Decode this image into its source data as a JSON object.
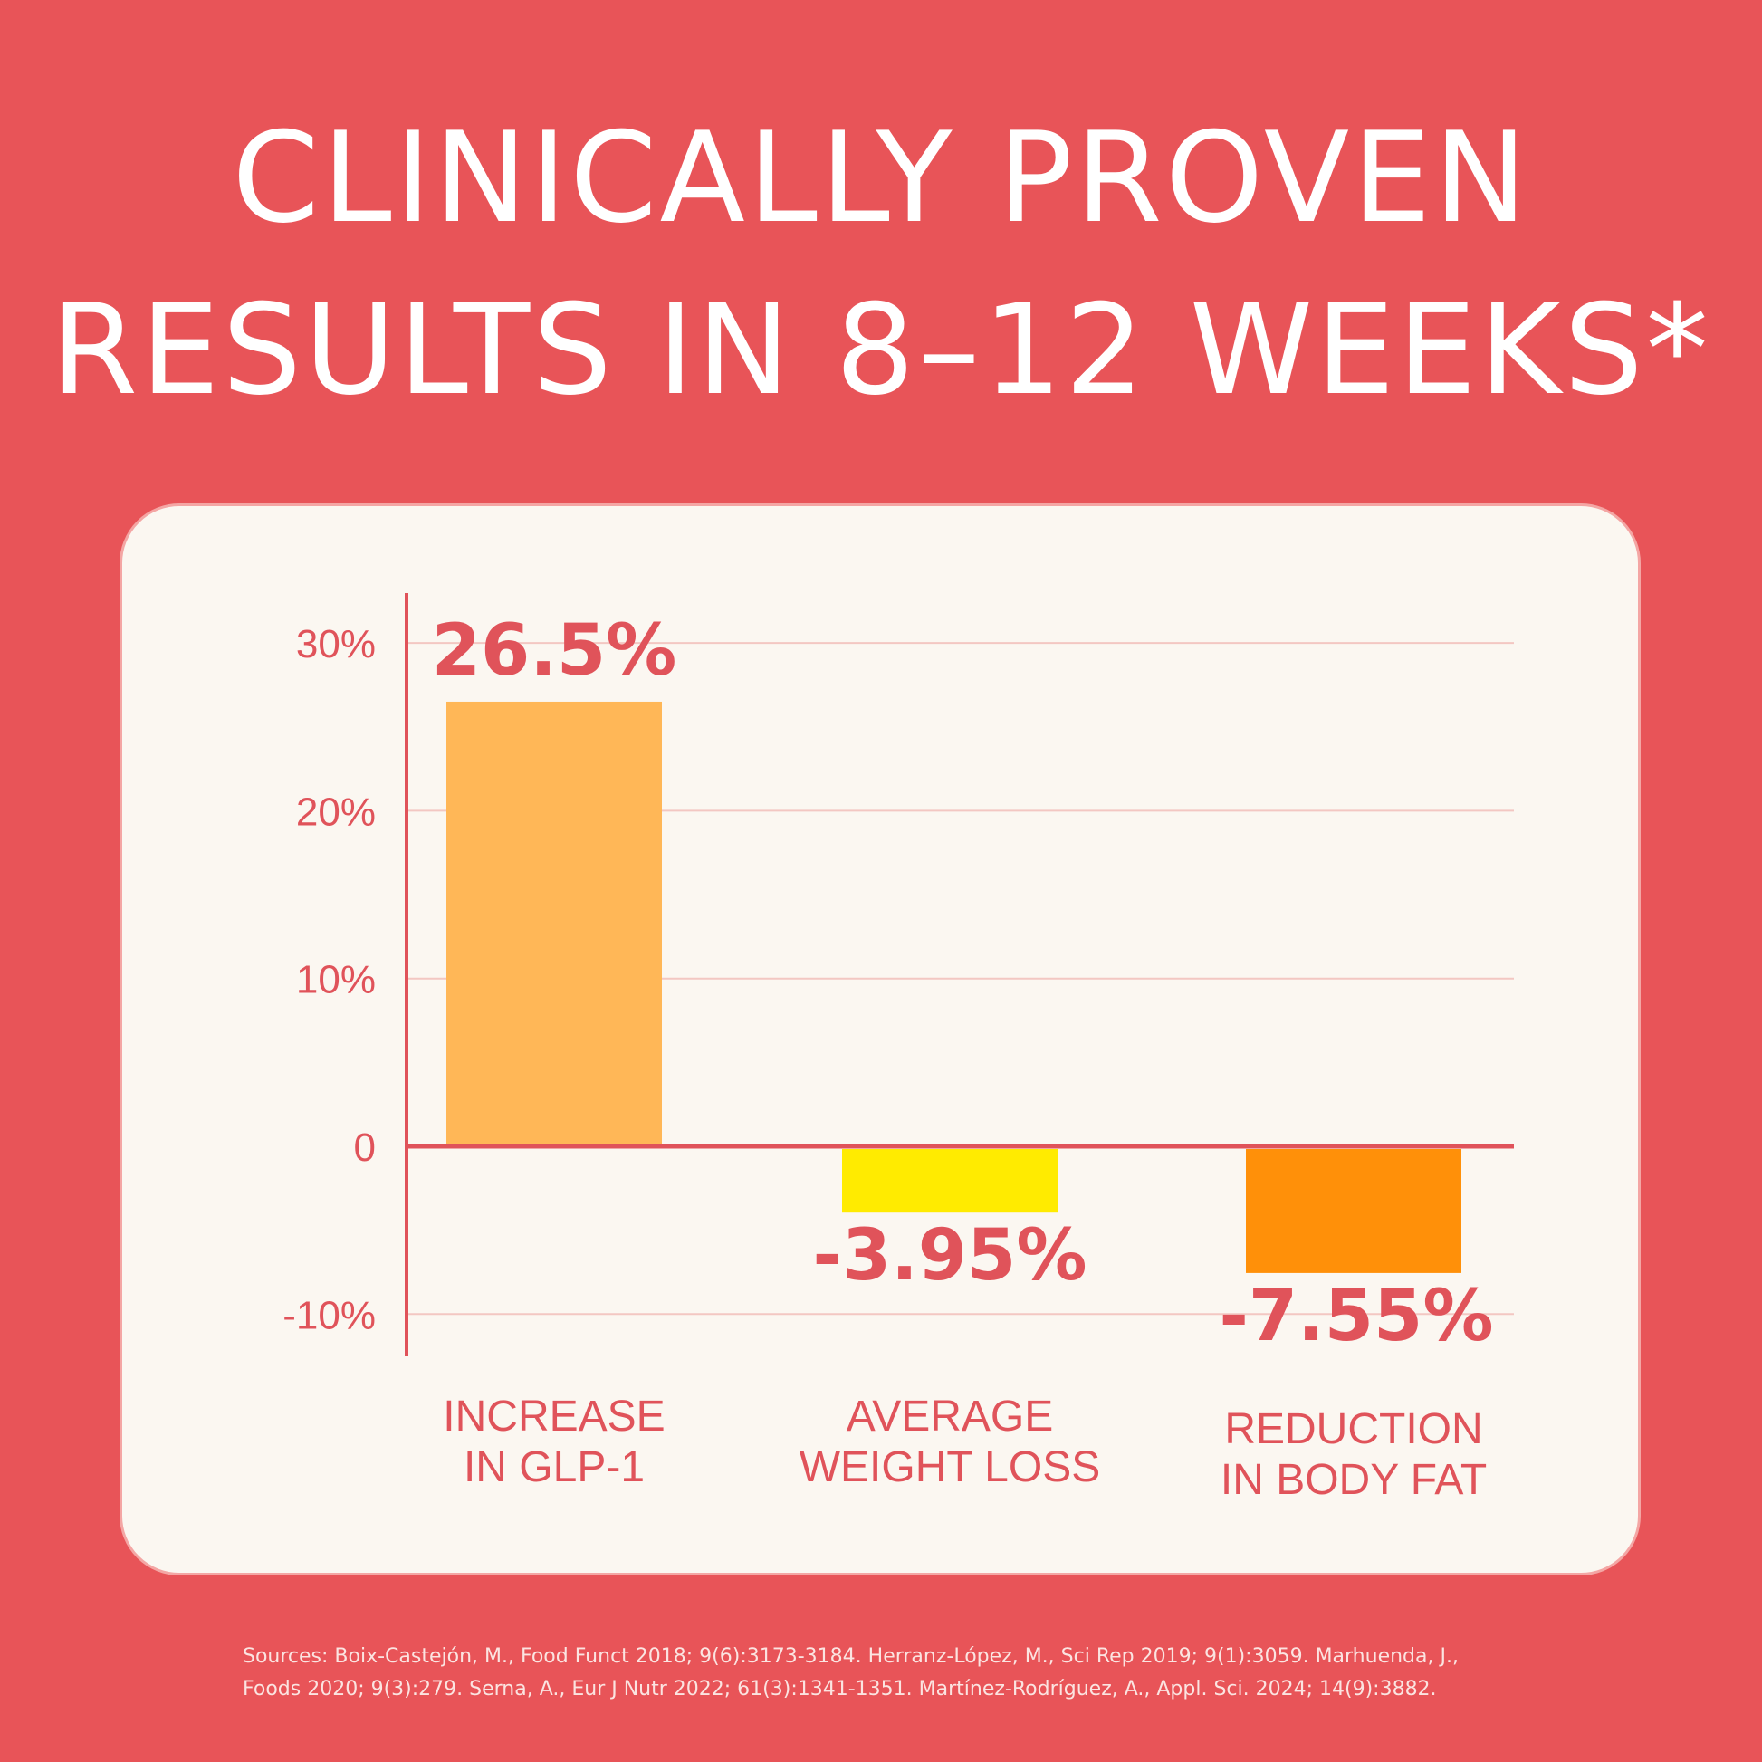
{
  "title": {
    "line1": "CLINICALLY PROVEN",
    "line2": "RESULTS IN 8–12 WEEKS*"
  },
  "colors": {
    "background": "#e85458",
    "card": "#fbf7f1",
    "text": "#e0535a",
    "grid": "#f3c7c2"
  },
  "chart_data": {
    "type": "bar",
    "categories": [
      [
        "INCREASE",
        "IN GLP-1"
      ],
      [
        "AVERAGE",
        "WEIGHT LOSS"
      ],
      [
        "REDUCTION",
        "IN BODY FAT"
      ]
    ],
    "values": [
      26.5,
      -3.95,
      -7.55
    ],
    "value_labels": [
      "26.5%",
      "-3.95%",
      "-7.55%"
    ],
    "bar_colors": [
      "#ffb757",
      "#ffeb00",
      "#ff9009"
    ],
    "y_ticks": [
      30,
      20,
      10,
      0,
      -10
    ],
    "y_tick_labels": [
      "30%",
      "20%",
      "10%",
      "0",
      "-10%"
    ],
    "ylim": [
      -12.3,
      33
    ],
    "grid": true
  },
  "sources": {
    "line1": "Sources:  Boix-Castejón, M., Food Funct 2018; 9(6):3173-3184. Herranz-López, M., Sci Rep 2019; 9(1):3059. Marhuenda, J.,",
    "line2": "Foods 2020; 9(3):279. Serna, A., Eur J Nutr 2022; 61(3):1341-1351. Martínez-Rodríguez, A., Appl. Sci. 2024; 14(9):3882."
  }
}
